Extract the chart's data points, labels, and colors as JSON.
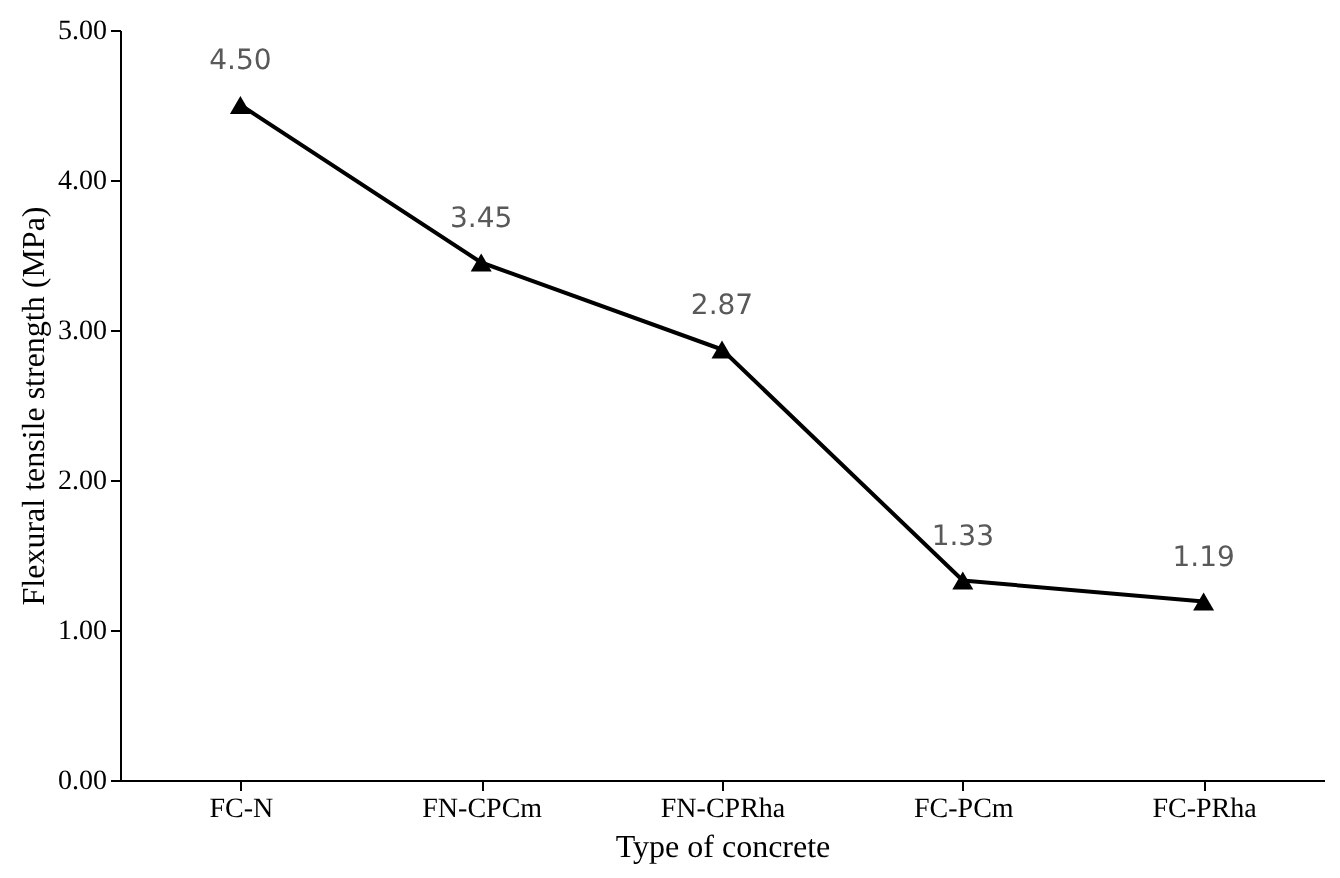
{
  "chart_data": {
    "type": "line",
    "xlabel": "Type of concrete",
    "ylabel": "Flexural tensile  strength (MPa)",
    "categories": [
      "FC-N",
      "FN-CPCm",
      "FN-CPRha",
      "FC-PCm",
      "FC-PRha"
    ],
    "series": [
      {
        "color": "#000000",
        "values": [
          4.5,
          3.45,
          2.87,
          1.33,
          1.19
        ],
        "value_labels": [
          "4.50",
          "3.45",
          "2.87",
          "1.33",
          "1.19"
        ]
      }
    ],
    "ylim": [
      0,
      5
    ],
    "yticks": [
      {
        "value": 0,
        "label": "0.00"
      },
      {
        "value": 1,
        "label": "1.00"
      },
      {
        "value": 2,
        "label": "2.00"
      },
      {
        "value": 3,
        "label": "3.00"
      },
      {
        "value": 4,
        "label": "4.00"
      },
      {
        "value": 5,
        "label": "5.00"
      }
    ],
    "marker": "triangle",
    "line_style": "solid",
    "grid": false
  }
}
